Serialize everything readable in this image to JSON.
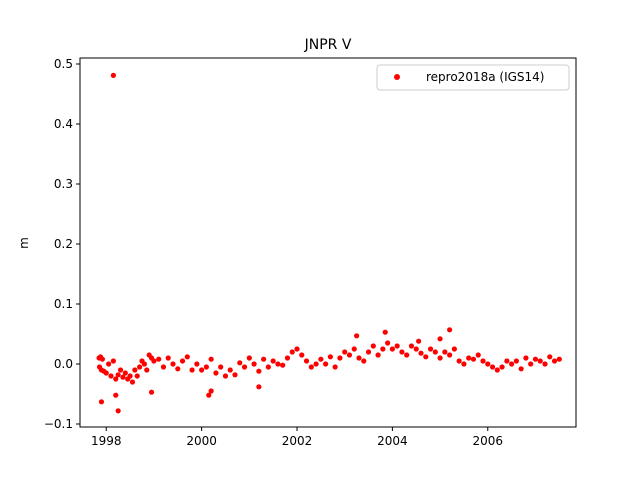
{
  "chart_data": {
    "type": "scatter",
    "title": "JNPR V",
    "xlabel": "",
    "ylabel": "m",
    "xlim": [
      1997.45,
      2007.85
    ],
    "ylim": [
      -0.105,
      0.51
    ],
    "xticks": [
      1998,
      2000,
      2002,
      2004,
      2006
    ],
    "xtick_labels": [
      "1998",
      "2000",
      "2002",
      "2004",
      "2006"
    ],
    "yticks": [
      -0.1,
      0.0,
      0.1,
      0.2,
      0.3,
      0.4,
      0.5
    ],
    "ytick_labels": [
      "−0.1",
      "0.0",
      "0.1",
      "0.2",
      "0.3",
      "0.4",
      "0.5"
    ],
    "grid": false,
    "legend_position": "top-right",
    "colors": {
      "series": "#ff0000",
      "axes": "#000000"
    },
    "series": [
      {
        "name": "repro2018a (IGS14)",
        "marker": "circle",
        "x": [
          1997.85,
          1997.86,
          1997.88,
          1997.9,
          1997.92,
          1997.95,
          1998.0,
          1998.05,
          1998.1,
          1998.15,
          1998.2,
          1998.25,
          1998.3,
          1998.35,
          1998.4,
          1998.45,
          1998.5,
          1998.55,
          1998.6,
          1998.65,
          1998.7,
          1998.75,
          1998.8,
          1998.85,
          1998.9,
          1998.95,
          1999.0,
          1999.1,
          1999.2,
          1999.3,
          1999.4,
          1999.5,
          1999.6,
          1999.7,
          1999.8,
          1999.9,
          2000.0,
          2000.1,
          2000.2,
          2000.3,
          2000.4,
          2000.5,
          2000.6,
          2000.7,
          2000.8,
          2000.9,
          2001.0,
          2001.1,
          2001.2,
          2001.3,
          2001.4,
          2001.5,
          2001.6,
          2001.7,
          2001.8,
          2001.9,
          2002.0,
          2002.1,
          2002.2,
          2002.3,
          2002.4,
          2002.5,
          2002.6,
          2002.7,
          2002.8,
          2002.9,
          2003.0,
          2003.1,
          2003.2,
          2003.3,
          2003.4,
          2003.5,
          2003.6,
          2003.7,
          2003.8,
          2003.9,
          2004.0,
          2004.1,
          2004.2,
          2004.3,
          2004.4,
          2004.5,
          2004.6,
          2004.7,
          2004.8,
          2004.9,
          2005.0,
          2005.1,
          2005.2,
          2005.3,
          2005.4,
          2005.5,
          2005.6,
          2005.7,
          2005.8,
          2005.9,
          2006.0,
          2006.1,
          2006.2,
          2006.3,
          2006.4,
          2006.5,
          2006.6,
          2006.7,
          2006.8,
          2006.9,
          2007.0,
          2007.1,
          2007.2,
          2007.3,
          2007.4,
          2007.5,
          1998.15,
          1997.9,
          1998.25,
          1998.2,
          1998.95,
          2000.2,
          2000.15,
          2001.2,
          2003.25,
          2003.85,
          2005.2,
          2005.0,
          2004.55
        ],
        "y": [
          0.01,
          -0.005,
          0.012,
          -0.01,
          0.008,
          -0.012,
          -0.015,
          0.0,
          -0.02,
          0.005,
          -0.025,
          -0.018,
          -0.01,
          -0.022,
          -0.015,
          -0.025,
          -0.02,
          -0.03,
          -0.01,
          -0.02,
          -0.005,
          0.005,
          0.0,
          -0.01,
          0.015,
          0.01,
          0.005,
          0.008,
          -0.005,
          0.01,
          0.0,
          -0.008,
          0.005,
          0.012,
          -0.01,
          0.0,
          -0.01,
          -0.005,
          0.008,
          -0.015,
          -0.005,
          -0.02,
          -0.01,
          -0.018,
          0.002,
          -0.005,
          0.01,
          0.0,
          -0.012,
          0.008,
          -0.005,
          0.005,
          0.0,
          -0.002,
          0.01,
          0.02,
          0.025,
          0.015,
          0.005,
          -0.005,
          0.0,
          0.008,
          0.0,
          0.012,
          -0.005,
          0.01,
          0.02,
          0.015,
          0.025,
          0.01,
          0.005,
          0.02,
          0.03,
          0.015,
          0.025,
          0.035,
          0.025,
          0.03,
          0.02,
          0.015,
          0.03,
          0.025,
          0.018,
          0.012,
          0.025,
          0.02,
          0.01,
          0.02,
          0.015,
          0.025,
          0.005,
          0.0,
          0.01,
          0.008,
          0.015,
          0.005,
          0.0,
          -0.005,
          -0.01,
          -0.005,
          0.005,
          0.0,
          0.005,
          -0.008,
          0.01,
          0.0,
          0.008,
          0.005,
          0.0,
          0.012,
          0.005,
          0.008,
          0.481,
          -0.063,
          -0.078,
          -0.052,
          -0.047,
          -0.045,
          -0.052,
          -0.038,
          0.047,
          0.053,
          0.057,
          0.042,
          0.038
        ]
      }
    ]
  }
}
